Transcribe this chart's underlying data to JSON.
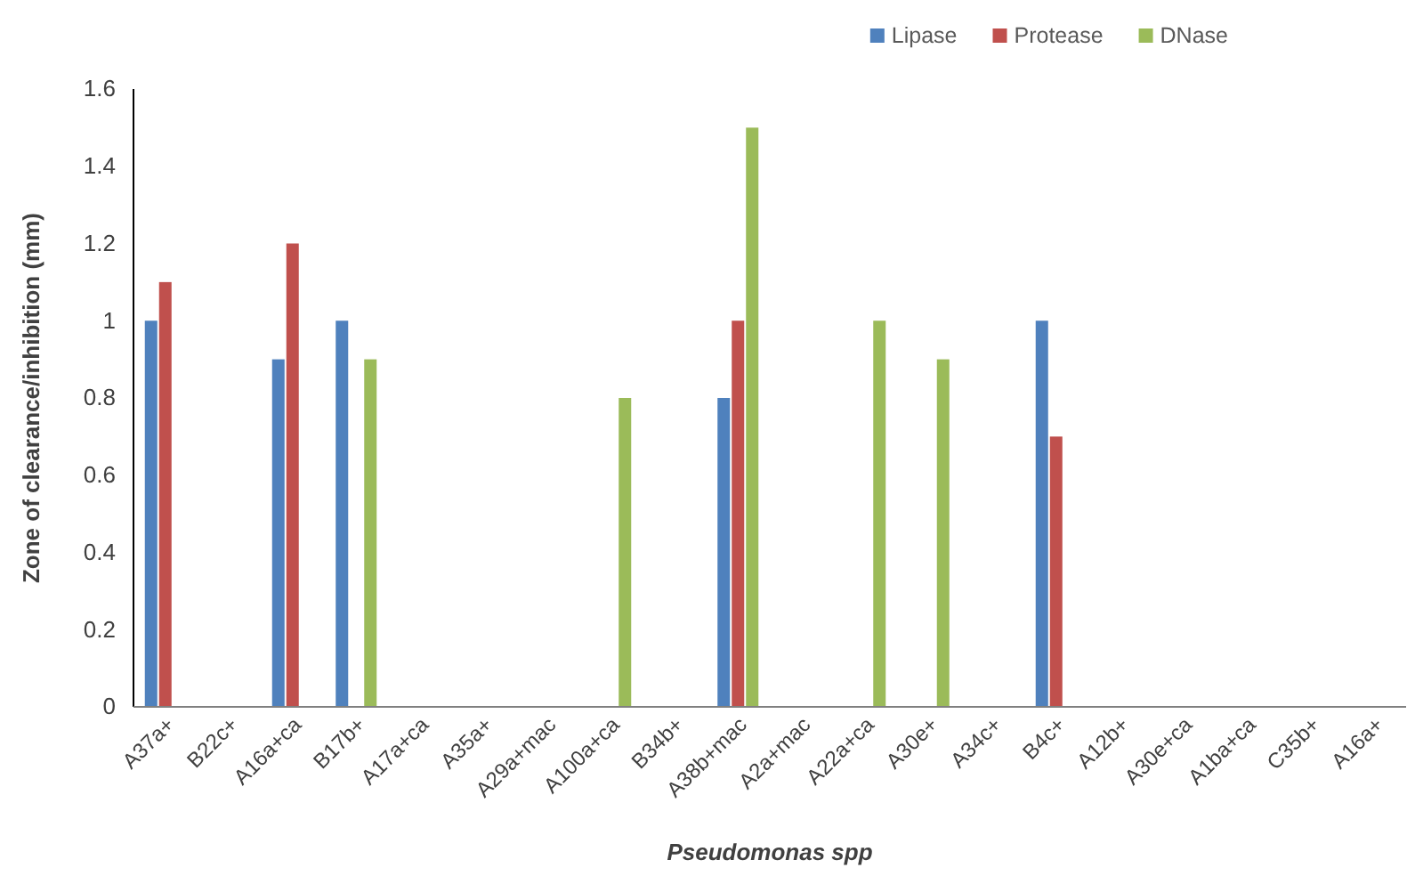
{
  "chart_data": {
    "type": "bar",
    "xlabel": "Pseudomonas spp",
    "ylabel": "Zone of clearance/inhibition (mm)",
    "categories": [
      "A37a+",
      "B22c+",
      "A16a+ca",
      "B17b+",
      "A17a+ca",
      "A35a+",
      "A29a+mac",
      "A100a+ca",
      "B34b+",
      "A38b+mac",
      "A2a+mac",
      "A22a+ca",
      "A30e+",
      "A34c+",
      "B4c+",
      "A12b+",
      "A30e+ca",
      "A1ba+ca",
      "C35b+",
      "A16a+"
    ],
    "series": [
      {
        "name": "Lipase",
        "color": "#4f81bd",
        "values": [
          1,
          0,
          0.9,
          1,
          0,
          0,
          0,
          0,
          0,
          0.8,
          0,
          0,
          0,
          0,
          1,
          0,
          0,
          0,
          0,
          0
        ]
      },
      {
        "name": "Protease",
        "color": "#c0504d",
        "values": [
          1.1,
          0,
          1.2,
          0,
          0,
          0,
          0,
          0,
          0,
          1,
          0,
          0,
          0,
          0,
          0.7,
          0,
          0,
          0,
          0,
          0
        ]
      },
      {
        "name": "DNase",
        "color": "#9bbb59",
        "values": [
          0,
          0,
          0,
          0.9,
          0,
          0,
          0,
          0.8,
          0,
          1.5,
          0,
          1,
          0.9,
          0,
          0,
          0,
          0,
          0,
          0,
          0
        ]
      }
    ],
    "ylim": [
      0,
      1.6
    ],
    "yticks": [
      0,
      0.2,
      0.4,
      0.6,
      0.8,
      1,
      1.2,
      1.4,
      1.6
    ],
    "grid": false,
    "legend": "top right"
  }
}
